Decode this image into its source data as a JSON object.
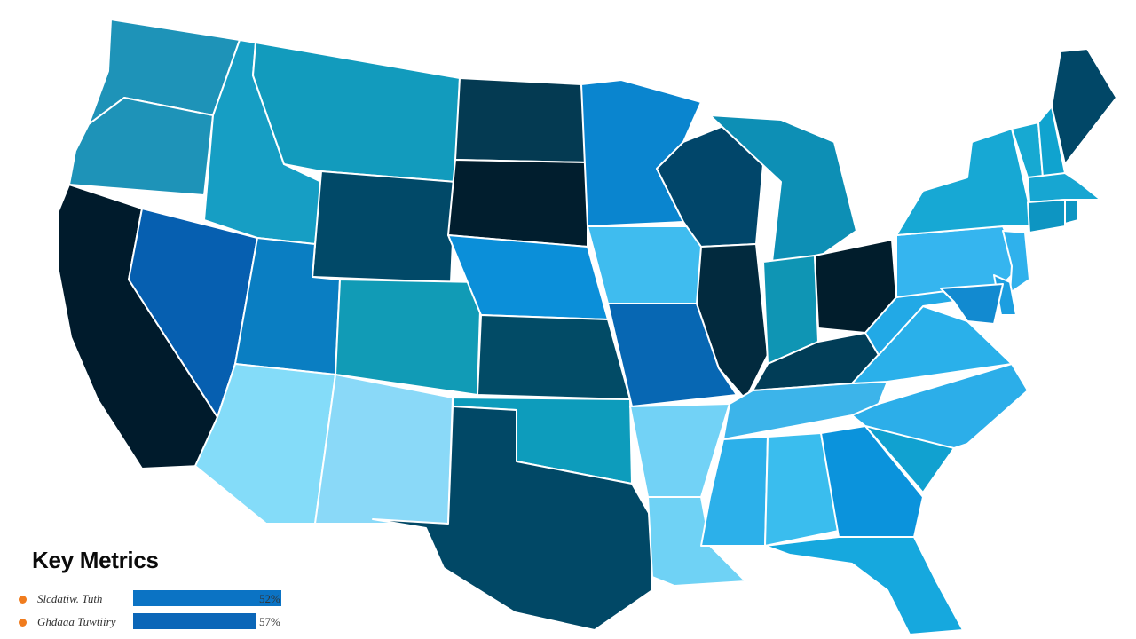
{
  "map": {
    "regions": [
      {
        "id": "WA",
        "color": "#1e93b8"
      },
      {
        "id": "OR",
        "color": "#1e93b8"
      },
      {
        "id": "CA",
        "color": "#001b2c"
      },
      {
        "id": "NV",
        "color": "#065fb0"
      },
      {
        "id": "ID",
        "color": "#169ec4"
      },
      {
        "id": "MT",
        "color": "#129bbd"
      },
      {
        "id": "WY",
        "color": "#014968"
      },
      {
        "id": "UT",
        "color": "#0a7ec2"
      },
      {
        "id": "CO",
        "color": "#119bb6"
      },
      {
        "id": "AZ",
        "color": "#84dcf9"
      },
      {
        "id": "NM",
        "color": "#8ad9f8"
      },
      {
        "id": "ND",
        "color": "#043a52"
      },
      {
        "id": "SD",
        "color": "#011e2e"
      },
      {
        "id": "NE",
        "color": "#0b8fd9"
      },
      {
        "id": "KS",
        "color": "#024b66"
      },
      {
        "id": "OK",
        "color": "#0d9cbc"
      },
      {
        "id": "TX",
        "color": "#014866"
      },
      {
        "id": "MN",
        "color": "#0a85cf"
      },
      {
        "id": "IA",
        "color": "#3fbcef"
      },
      {
        "id": "MO",
        "color": "#0767b3"
      },
      {
        "id": "AR",
        "color": "#72d2f6"
      },
      {
        "id": "LA",
        "color": "#6fd2f5"
      },
      {
        "id": "WI",
        "color": "#01466a"
      },
      {
        "id": "IL",
        "color": "#022a3e"
      },
      {
        "id": "MI",
        "color": "#0d8fb5"
      },
      {
        "id": "IN",
        "color": "#0f95b4"
      },
      {
        "id": "OH",
        "color": "#011d2c"
      },
      {
        "id": "KY",
        "color": "#013d57"
      },
      {
        "id": "TN",
        "color": "#3cb4ea"
      },
      {
        "id": "MS",
        "color": "#2cb0ea"
      },
      {
        "id": "AL",
        "color": "#3abdee"
      },
      {
        "id": "GA",
        "color": "#0b93dc"
      },
      {
        "id": "FL",
        "color": "#16a8de"
      },
      {
        "id": "SC",
        "color": "#11a1d0"
      },
      {
        "id": "NC",
        "color": "#2caee9"
      },
      {
        "id": "VA",
        "color": "#2ab0ea"
      },
      {
        "id": "WV",
        "color": "#22a9e6"
      },
      {
        "id": "PA",
        "color": "#35b5ef"
      },
      {
        "id": "NY",
        "color": "#17a8d4"
      },
      {
        "id": "VT",
        "color": "#17a9d2"
      },
      {
        "id": "NH",
        "color": "#10a3cf"
      },
      {
        "id": "ME",
        "color": "#014767"
      },
      {
        "id": "MA",
        "color": "#17a6d2"
      },
      {
        "id": "CT",
        "color": "#0d95c2"
      },
      {
        "id": "RI",
        "color": "#0d95c2"
      },
      {
        "id": "NJ",
        "color": "#2fb1ec"
      },
      {
        "id": "DE",
        "color": "#1c9ee0"
      },
      {
        "id": "MD",
        "color": "#128ad0"
      }
    ]
  },
  "metrics": {
    "title": "Key Metrics",
    "items": [
      {
        "label": "Slcdatiw. Tuth",
        "value": "52%",
        "fill": 0.93,
        "dot_color": "#f07c1e",
        "bar_color": "#0b73c4"
      },
      {
        "label": "Ghdaaa Tuwtiiry",
        "value": "57%",
        "fill": 0.77,
        "dot_color": "#f07c1e",
        "bar_color": "#0b66b8"
      }
    ]
  }
}
